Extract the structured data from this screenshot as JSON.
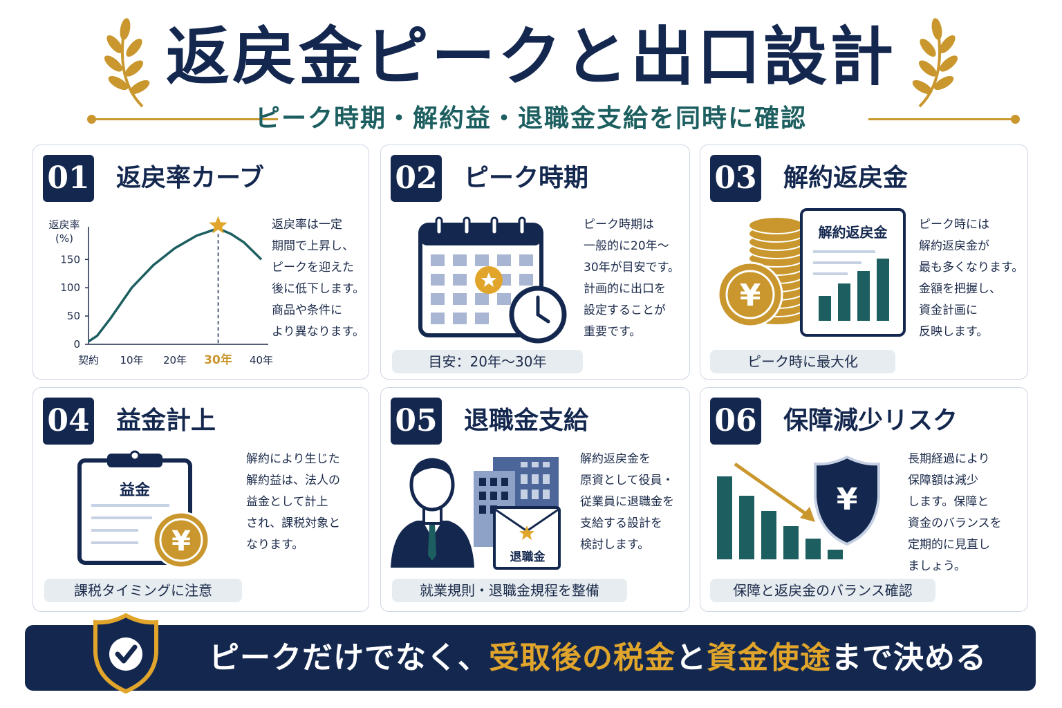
{
  "header": {
    "title": "返戻金ピークと出口設計",
    "subtitle": "ピーク時期・解約益・退職金支給を同時に確認"
  },
  "colors": {
    "navy": "#14284f",
    "gold": "#c9972d",
    "teal": "#1d5f60",
    "pill": "#e6ecef"
  },
  "cards": [
    {
      "number": "01",
      "title": "返戻率カーブ",
      "description": [
        "返戻率は一定",
        "期間で上昇し、",
        "ピークを迎えた",
        "後に低下します。",
        "商品や条件に",
        "より異なります。"
      ]
    },
    {
      "number": "02",
      "title": "ピーク時期",
      "description": [
        "ピーク時期は",
        "一般的に20年〜",
        "30年が目安です。",
        "計画的に出口を",
        "設定することが",
        "重要です。"
      ],
      "pill": "目安：20年〜30年"
    },
    {
      "number": "03",
      "title": "解約返戻金",
      "description": [
        "ピーク時には",
        "解約返戻金が",
        "最も多くなります。",
        "金額を把握し、",
        "資金計画に",
        "反映します。"
      ],
      "pill": "ピーク時に最大化",
      "doc_label": "解約返戻金"
    },
    {
      "number": "04",
      "title": "益金計上",
      "description": [
        "解約により生じた",
        "解約益は、法人の",
        "益金として計上",
        "され、課税対象と",
        "なります。"
      ],
      "pill": "課税タイミングに注意",
      "clipboard_label": "益金"
    },
    {
      "number": "05",
      "title": "退職金支給",
      "description": [
        "解約返戻金を",
        "原資として役員・",
        "従業員に退職金を",
        "支給する設計を",
        "検討します。"
      ],
      "pill": "就業規則・退職金規程を整備",
      "envelope_label": "退職金"
    },
    {
      "number": "06",
      "title": "保障減少リスク",
      "description": [
        "長期経過により",
        "保障額は減少",
        "します。保障と",
        "資金のバランスを",
        "定期的に見直し",
        "ましょう。"
      ],
      "pill": "保障と返戻金のバランス確認"
    }
  ],
  "chart_data": {
    "type": "line",
    "ylabel": "返戻率\n(%)",
    "ylabel_line1": "返戻率",
    "ylabel_line2": "(%)",
    "yticks": [
      "0",
      "50",
      "100",
      "150"
    ],
    "ylim": [
      0,
      220
    ],
    "xticks": [
      "契約",
      "10年",
      "20年",
      "30年",
      "40年"
    ],
    "xlim": [
      0,
      40
    ],
    "highlight_x": 30,
    "highlight_label": "30年",
    "series": [
      {
        "x": [
          0,
          2,
          5,
          10,
          15,
          20,
          25,
          30,
          33,
          36,
          40
        ],
        "y": [
          5,
          15,
          45,
          100,
          140,
          170,
          192,
          205,
          195,
          180,
          150
        ]
      }
    ]
  },
  "footer": {
    "part1": "ピークだけでなく、",
    "highlight1": "受取後の税金",
    "part2": "と",
    "highlight2": "資金使途",
    "part3": "まで決める"
  }
}
